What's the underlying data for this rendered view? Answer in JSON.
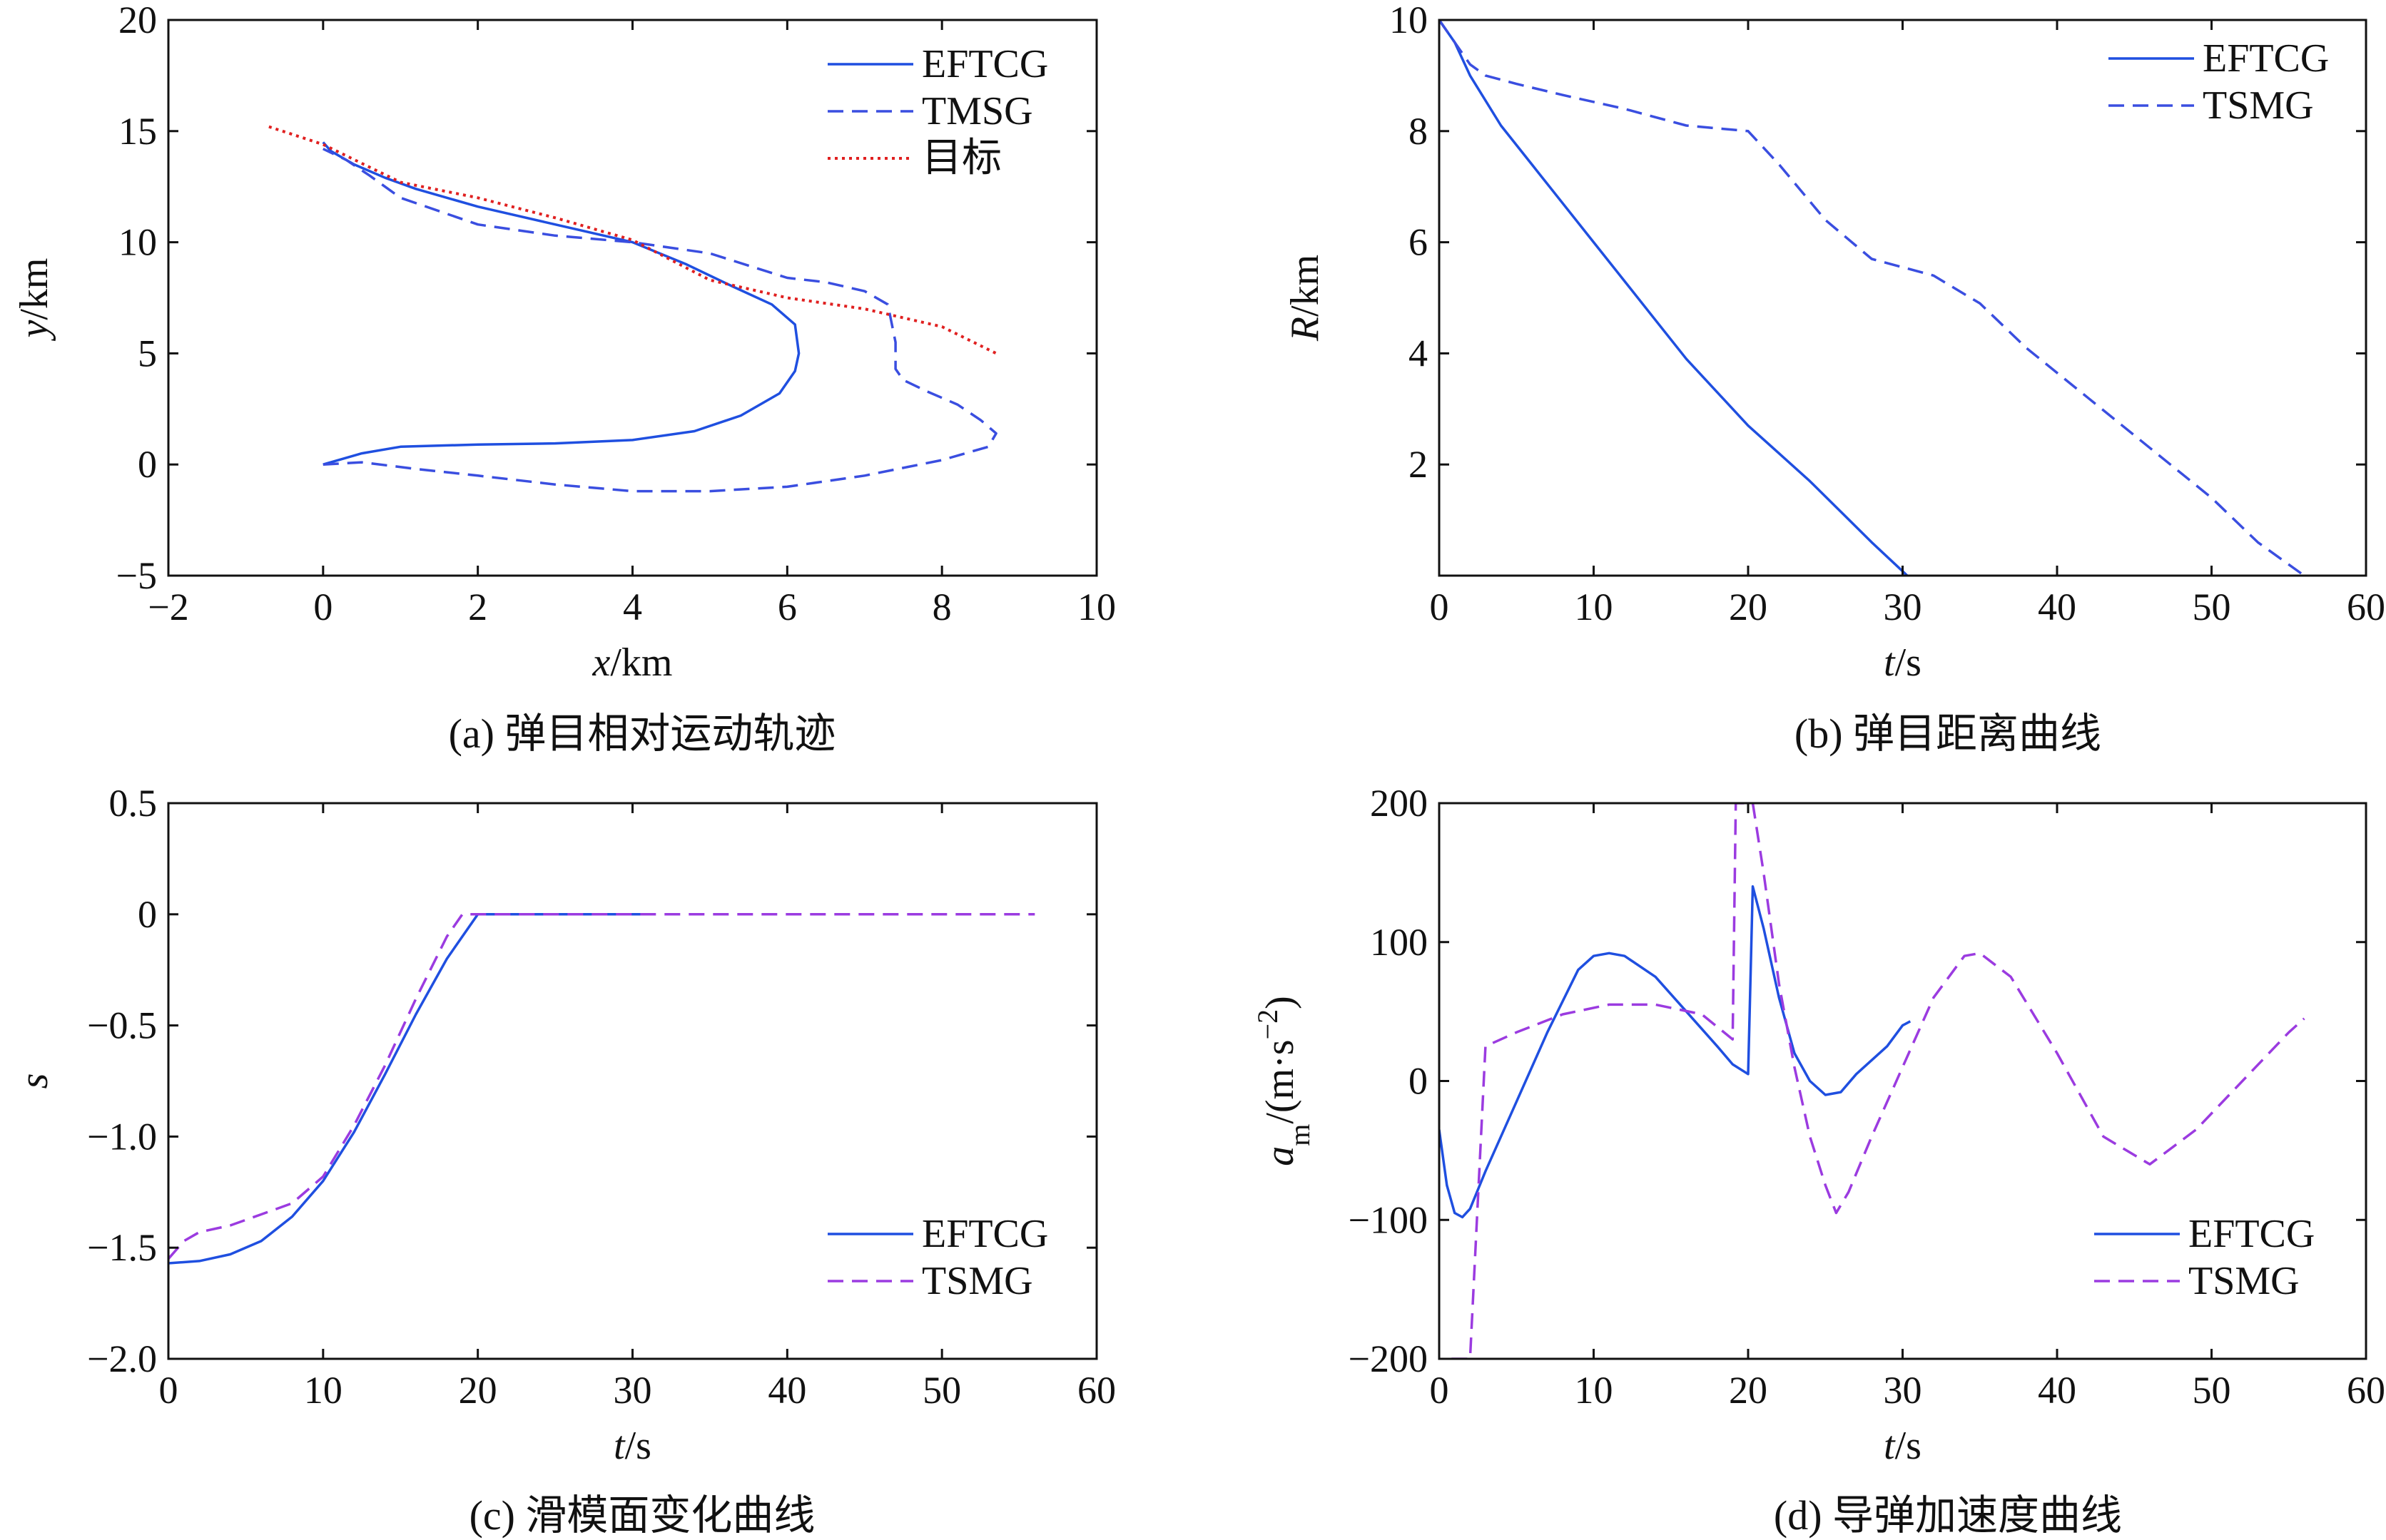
{
  "figure": {
    "colors": {
      "solid": "#1f4fe0",
      "dashed_blue": "#3a4ee0",
      "dashed_purple": "#9b3be0",
      "dotted_red": "#e02020",
      "axes": "#111111"
    }
  },
  "chart_data": [
    {
      "id": "a",
      "type": "line",
      "caption": "(a) 弹目相对运动轨迹",
      "xlabel": {
        "var": "x",
        "unit": "/km"
      },
      "ylabel": {
        "var": "y",
        "unit": "/km"
      },
      "xlim": [
        -2,
        10
      ],
      "ylim": [
        -5,
        20
      ],
      "xticks": [
        -2,
        0,
        2,
        4,
        6,
        8,
        10
      ],
      "yticks": [
        -5,
        0,
        5,
        10,
        15,
        20
      ],
      "xtick_labels": [
        "−2",
        "0",
        "2",
        "4",
        "6",
        "8",
        "10"
      ],
      "ytick_labels": [
        "−5",
        "0",
        "5",
        "10",
        "15",
        "20"
      ],
      "legend_position": "top-right",
      "series": [
        {
          "name": "EFTCG",
          "style": "solid",
          "color": "#1f4fe0",
          "x": [
            0,
            0.5,
            1,
            2,
            3,
            4,
            4.8,
            5.4,
            5.9,
            6.1,
            6.15,
            6.1,
            5.8,
            5.3,
            4.7,
            4.0,
            3.0,
            2.0,
            1.2,
            0.8,
            0.4,
            0.1,
            0
          ],
          "y": [
            0,
            0.5,
            0.8,
            0.9,
            0.95,
            1.1,
            1.5,
            2.2,
            3.2,
            4.2,
            5.0,
            6.3,
            7.2,
            8.0,
            9.0,
            10.0,
            10.8,
            11.6,
            12.4,
            12.9,
            13.5,
            14.1,
            14.5
          ]
        },
        {
          "name": "TMSG",
          "style": "dashed",
          "color": "#3a4ee0",
          "x": [
            0,
            0.5,
            1.2,
            2,
            3,
            4,
            5,
            6,
            7,
            8,
            8.6,
            8.7,
            8.5,
            8.2,
            7.8,
            7.5,
            7.4,
            7.4,
            7.3,
            7.0,
            6.5,
            6.0,
            5.0,
            4.0,
            3.0,
            2.0,
            1.0,
            0.6,
            0.3,
            0
          ],
          "y": [
            0,
            0.1,
            -0.2,
            -0.5,
            -0.9,
            -1.2,
            -1.2,
            -1.0,
            -0.5,
            0.2,
            0.8,
            1.4,
            2.0,
            2.7,
            3.3,
            3.8,
            4.3,
            5.5,
            7.2,
            7.8,
            8.2,
            8.4,
            9.5,
            10.0,
            10.3,
            10.8,
            12.0,
            13.0,
            13.7,
            14.2
          ]
        },
        {
          "name": "目标",
          "style": "dotted",
          "color": "#e02020",
          "x": [
            -0.7,
            0,
            1,
            2,
            3,
            4,
            5,
            6,
            7,
            8,
            8.7
          ],
          "y": [
            15.2,
            14.4,
            12.7,
            12.0,
            11.1,
            10.1,
            8.3,
            7.5,
            7.0,
            6.2,
            5.0
          ]
        }
      ]
    },
    {
      "id": "b",
      "type": "line",
      "caption": "(b) 弹目距离曲线",
      "xlabel": {
        "var": "t",
        "unit": "/s"
      },
      "ylabel": {
        "var": "R",
        "unit": "/km"
      },
      "xlim": [
        0,
        60
      ],
      "ylim": [
        0,
        10
      ],
      "xticks": [
        0,
        10,
        20,
        30,
        40,
        50,
        60
      ],
      "yticks": [
        2,
        4,
        6,
        8,
        10
      ],
      "xtick_labels": [
        "0",
        "10",
        "20",
        "30",
        "40",
        "50",
        "60"
      ],
      "ytick_labels": [
        "2",
        "4",
        "6",
        "8",
        "10"
      ],
      "legend_position": "top-right",
      "series": [
        {
          "name": "EFTCG",
          "style": "solid",
          "color": "#1f4fe0",
          "x": [
            0,
            1,
            2,
            4,
            6,
            8,
            10,
            12,
            14,
            16,
            18,
            20,
            22,
            24,
            26,
            28,
            30,
            30.3
          ],
          "y": [
            10,
            9.6,
            9.0,
            8.1,
            7.4,
            6.7,
            6.0,
            5.3,
            4.6,
            3.9,
            3.3,
            2.7,
            2.2,
            1.7,
            1.15,
            0.6,
            0.08,
            0
          ]
        },
        {
          "name": "TSMG",
          "style": "dashed",
          "color": "#3a4ee0",
          "x": [
            0,
            1,
            2,
            3,
            5,
            8,
            12,
            16,
            18,
            20,
            22,
            25,
            28,
            32,
            35,
            38,
            42,
            46,
            50,
            53,
            56
          ],
          "y": [
            10,
            9.6,
            9.2,
            9.0,
            8.85,
            8.65,
            8.4,
            8.1,
            8.05,
            8.0,
            7.4,
            6.4,
            5.7,
            5.4,
            4.9,
            4.1,
            3.2,
            2.3,
            1.4,
            0.6,
            0
          ]
        }
      ]
    },
    {
      "id": "c",
      "type": "line",
      "caption": "(c) 滑模面变化曲线",
      "xlabel": {
        "var": "t",
        "unit": "/s"
      },
      "ylabel": {
        "var": "s",
        "unit": ""
      },
      "xlim": [
        0,
        60
      ],
      "ylim": [
        -2.0,
        0.5
      ],
      "xticks": [
        0,
        10,
        20,
        30,
        40,
        50,
        60
      ],
      "yticks": [
        -2.0,
        -1.5,
        -1.0,
        -0.5,
        0,
        0.5
      ],
      "xtick_labels": [
        "0",
        "10",
        "20",
        "30",
        "40",
        "50",
        "60"
      ],
      "ytick_labels": [
        "−2.0",
        "−1.5",
        "−1.0",
        "−0.5",
        "0",
        "0.5"
      ],
      "legend_position": "bottom-right",
      "series": [
        {
          "name": "EFTCG",
          "style": "solid",
          "color": "#1f4fe0",
          "x": [
            0,
            2,
            4,
            6,
            8,
            10,
            12,
            14,
            16,
            18,
            20,
            25,
            31
          ],
          "y": [
            -1.57,
            -1.56,
            -1.53,
            -1.47,
            -1.36,
            -1.2,
            -0.98,
            -0.72,
            -0.45,
            -0.2,
            0,
            0,
            0
          ]
        },
        {
          "name": "TSMG",
          "style": "dashed",
          "color": "#9b3be0",
          "x": [
            0,
            1,
            2,
            4,
            6,
            8,
            10,
            12,
            14,
            16,
            18,
            19,
            20,
            30,
            40,
            50,
            56
          ],
          "y": [
            -1.55,
            -1.47,
            -1.43,
            -1.4,
            -1.35,
            -1.3,
            -1.18,
            -0.95,
            -0.68,
            -0.38,
            -0.1,
            0,
            0,
            0,
            0,
            0,
            0
          ]
        }
      ]
    },
    {
      "id": "d",
      "type": "line",
      "caption": "(d) 导弹加速度曲线",
      "xlabel": {
        "var": "t",
        "unit": "/s"
      },
      "ylabel": {
        "var": "a",
        "sub": "m",
        "unit": "/(m·s",
        "sup": "−2",
        "close": ")"
      },
      "xlim": [
        0,
        60
      ],
      "ylim": [
        -200,
        200
      ],
      "xticks": [
        0,
        10,
        20,
        30,
        40,
        50,
        60
      ],
      "yticks": [
        -200,
        -100,
        0,
        100,
        200
      ],
      "xtick_labels": [
        "0",
        "10",
        "20",
        "30",
        "40",
        "50",
        "60"
      ],
      "ytick_labels": [
        "−200",
        "−100",
        "0",
        "100",
        "200"
      ],
      "legend_position": "bottom-right",
      "series": [
        {
          "name": "EFTCG",
          "style": "solid",
          "color": "#1f4fe0",
          "x": [
            0,
            0.5,
            1,
            1.5,
            2,
            3,
            5,
            7,
            9,
            10,
            11,
            12,
            14,
            16,
            18,
            19,
            20,
            20.1,
            20.3,
            21,
            22,
            23,
            24,
            25,
            26,
            27,
            28,
            29,
            30,
            30.5
          ],
          "y": [
            -35,
            -75,
            -95,
            -98,
            -92,
            -65,
            -15,
            35,
            80,
            90,
            92,
            90,
            75,
            50,
            25,
            12,
            5,
            50,
            140,
            110,
            60,
            20,
            0,
            -10,
            -8,
            5,
            15,
            25,
            40,
            43
          ]
        },
        {
          "name": "TSMG",
          "style": "dashed",
          "color": "#9b3be0",
          "x": [
            0.8,
            1.2,
            1.6,
            2.0,
            3,
            5,
            8,
            11,
            14,
            17,
            19,
            19.2,
            19.6,
            20.3,
            21,
            22,
            23,
            24,
            25,
            25.7,
            26.5,
            28,
            30,
            32,
            34,
            35,
            37,
            40,
            43,
            46,
            49,
            52,
            55,
            56
          ],
          "y": [
            -200,
            -200,
            -200,
            -200,
            25,
            35,
            48,
            55,
            55,
            48,
            30,
            200,
            200,
            200,
            150,
            70,
            10,
            -40,
            -75,
            -95,
            -80,
            -40,
            10,
            60,
            90,
            92,
            75,
            20,
            -40,
            -60,
            -35,
            0,
            35,
            45
          ]
        }
      ]
    }
  ]
}
